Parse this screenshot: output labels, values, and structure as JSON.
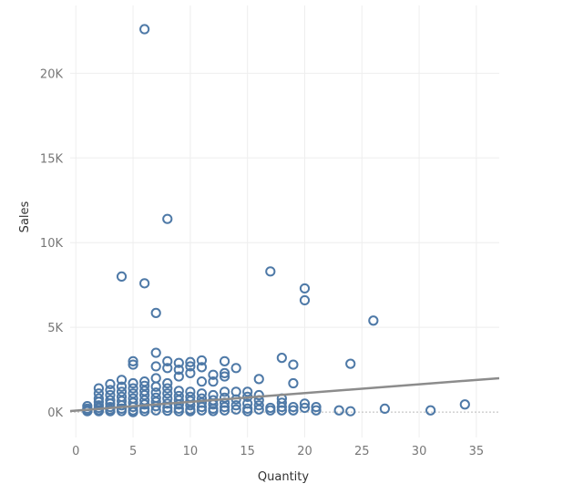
{
  "chart_data": {
    "type": "scatter",
    "xlabel": "Quantity",
    "ylabel": "Sales",
    "xlim": [
      -0.5,
      37
    ],
    "ylim": [
      -1500,
      24000
    ],
    "x_ticks": [
      0,
      5,
      10,
      15,
      20,
      25,
      30,
      35
    ],
    "x_tick_labels": [
      "0",
      "5",
      "10",
      "15",
      "20",
      "25",
      "30",
      "35"
    ],
    "y_ticks": [
      0,
      5000,
      10000,
      15000,
      20000
    ],
    "y_tick_labels": [
      "0K",
      "5K",
      "10K",
      "15K",
      "20K"
    ],
    "grid": true,
    "trend_line": {
      "x": [
        -0.5,
        37
      ],
      "y": [
        60,
        2000
      ]
    },
    "colors": {
      "points": "#4e79a7",
      "trend": "#8c8c8c",
      "grid": "#eeeeee",
      "zero_line": "#bbbbbb"
    },
    "series": [
      {
        "points": [
          [
            6,
            22600
          ],
          [
            8,
            11400
          ],
          [
            4,
            8000
          ],
          [
            6,
            7600
          ],
          [
            7,
            5850
          ],
          [
            17,
            8300
          ],
          [
            20,
            7300
          ],
          [
            20,
            6600
          ],
          [
            26,
            5400
          ],
          [
            7,
            3500
          ],
          [
            5,
            3000
          ],
          [
            8,
            3000
          ],
          [
            9,
            2900
          ],
          [
            10,
            2950
          ],
          [
            11,
            3050
          ],
          [
            13,
            3000
          ],
          [
            18,
            3200
          ],
          [
            19,
            2800
          ],
          [
            24,
            2850
          ],
          [
            5,
            2800
          ],
          [
            7,
            2700
          ],
          [
            8,
            2600
          ],
          [
            9,
            2500
          ],
          [
            10,
            2700
          ],
          [
            11,
            2650
          ],
          [
            12,
            2200
          ],
          [
            13,
            2300
          ],
          [
            14,
            2600
          ],
          [
            16,
            1950
          ],
          [
            19,
            1700
          ],
          [
            6,
            1800
          ],
          [
            7,
            2000
          ],
          [
            9,
            2100
          ],
          [
            10,
            2300
          ],
          [
            11,
            1800
          ],
          [
            13,
            2100
          ],
          [
            12,
            1800
          ],
          [
            8,
            1700
          ],
          [
            4,
            1900
          ],
          [
            5,
            1700
          ],
          [
            3,
            1650
          ],
          [
            2,
            1400
          ],
          [
            1,
            350
          ],
          [
            1,
            200
          ],
          [
            1,
            100
          ],
          [
            1,
            50
          ],
          [
            2,
            1100
          ],
          [
            2,
            800
          ],
          [
            2,
            600
          ],
          [
            2,
            400
          ],
          [
            2,
            250
          ],
          [
            2,
            120
          ],
          [
            2,
            50
          ],
          [
            3,
            1300
          ],
          [
            3,
            1000
          ],
          [
            3,
            700
          ],
          [
            3,
            500
          ],
          [
            3,
            300
          ],
          [
            3,
            150
          ],
          [
            3,
            50
          ],
          [
            4,
            1500
          ],
          [
            4,
            1200
          ],
          [
            4,
            900
          ],
          [
            4,
            650
          ],
          [
            4,
            400
          ],
          [
            4,
            200
          ],
          [
            4,
            60
          ],
          [
            5,
            1400
          ],
          [
            5,
            1100
          ],
          [
            5,
            800
          ],
          [
            5,
            550
          ],
          [
            5,
            300
          ],
          [
            5,
            100
          ],
          [
            5,
            0
          ],
          [
            6,
            1550
          ],
          [
            6,
            1250
          ],
          [
            6,
            1000
          ],
          [
            6,
            700
          ],
          [
            6,
            450
          ],
          [
            6,
            200
          ],
          [
            6,
            50
          ],
          [
            7,
            1500
          ],
          [
            7,
            1150
          ],
          [
            7,
            850
          ],
          [
            7,
            600
          ],
          [
            7,
            350
          ],
          [
            7,
            100
          ],
          [
            8,
            1400
          ],
          [
            8,
            1100
          ],
          [
            8,
            800
          ],
          [
            8,
            500
          ],
          [
            8,
            250
          ],
          [
            8,
            80
          ],
          [
            9,
            1250
          ],
          [
            9,
            950
          ],
          [
            9,
            700
          ],
          [
            9,
            450
          ],
          [
            9,
            200
          ],
          [
            9,
            50
          ],
          [
            10,
            1200
          ],
          [
            10,
            900
          ],
          [
            10,
            650
          ],
          [
            10,
            400
          ],
          [
            10,
            150
          ],
          [
            10,
            50
          ],
          [
            11,
            1100
          ],
          [
            11,
            800
          ],
          [
            11,
            550
          ],
          [
            11,
            300
          ],
          [
            11,
            100
          ],
          [
            12,
            1000
          ],
          [
            12,
            700
          ],
          [
            12,
            450
          ],
          [
            12,
            200
          ],
          [
            12,
            60
          ],
          [
            13,
            1200
          ],
          [
            13,
            850
          ],
          [
            13,
            550
          ],
          [
            13,
            300
          ],
          [
            13,
            100
          ],
          [
            14,
            1200
          ],
          [
            14,
            750
          ],
          [
            14,
            400
          ],
          [
            14,
            150
          ],
          [
            15,
            1200
          ],
          [
            15,
            900
          ],
          [
            15,
            500
          ],
          [
            15,
            200
          ],
          [
            15,
            50
          ],
          [
            16,
            1000
          ],
          [
            16,
            700
          ],
          [
            16,
            400
          ],
          [
            16,
            150
          ],
          [
            17,
            250
          ],
          [
            17,
            100
          ],
          [
            18,
            800
          ],
          [
            18,
            550
          ],
          [
            18,
            300
          ],
          [
            18,
            100
          ],
          [
            19,
            300
          ],
          [
            19,
            100
          ],
          [
            20,
            500
          ],
          [
            20,
            250
          ],
          [
            21,
            300
          ],
          [
            21,
            100
          ],
          [
            23,
            100
          ],
          [
            24,
            50
          ],
          [
            27,
            200
          ],
          [
            31,
            100
          ],
          [
            34,
            450
          ]
        ]
      }
    ]
  }
}
